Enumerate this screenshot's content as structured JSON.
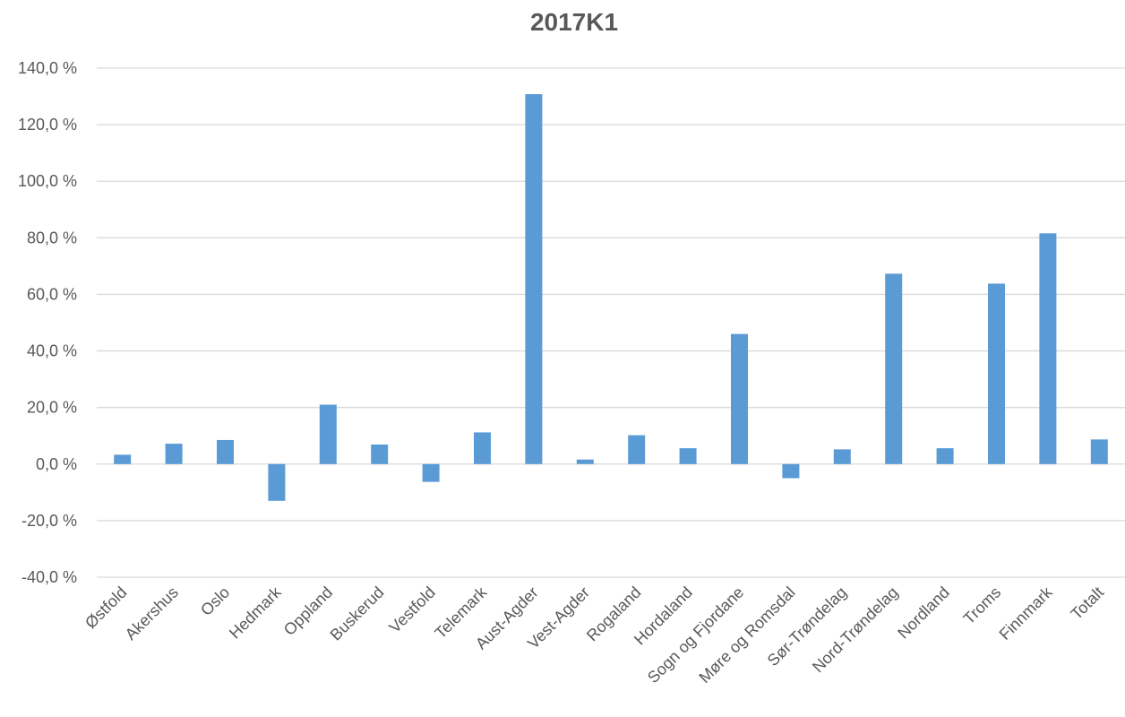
{
  "chart_data": {
    "type": "bar",
    "title": "2017K1",
    "xlabel": "",
    "ylabel": "",
    "categories": [
      "Østfold",
      "Akershus",
      "Oslo",
      "Hedmark",
      "Oppland",
      "Buskerud",
      "Vestfold",
      "Telemark",
      "Aust-Agder",
      "Vest-Agder",
      "Rogaland",
      "Hordaland",
      "Sogn og Fjordane",
      "Møre og Romsdal",
      "Sør-Trøndelag",
      "Nord-Trøndelag",
      "Nordland",
      "Troms",
      "Finnmark",
      "Totalt"
    ],
    "values": [
      3.3,
      7.2,
      8.5,
      -13.0,
      21.0,
      6.9,
      -6.3,
      11.2,
      130.8,
      1.6,
      10.2,
      5.6,
      46.0,
      -5.0,
      5.2,
      67.3,
      5.6,
      63.8,
      81.6,
      8.7
    ],
    "ylim": [
      -40,
      140
    ],
    "ytick_values": [
      -40,
      -20,
      0,
      20,
      40,
      60,
      80,
      100,
      120,
      140
    ],
    "ytick_labels": [
      "-40,0 %",
      "-20,0 %",
      "0,0 %",
      "20,0 %",
      "40,0 %",
      "60,0 %",
      "80,0 %",
      "100,0 %",
      "120,0 %",
      "140,0 %"
    ],
    "grid": true,
    "legend": "none",
    "bar_color": "#5b9bd5",
    "grid_color": "#d9d9d9",
    "text_color": "#595959"
  }
}
